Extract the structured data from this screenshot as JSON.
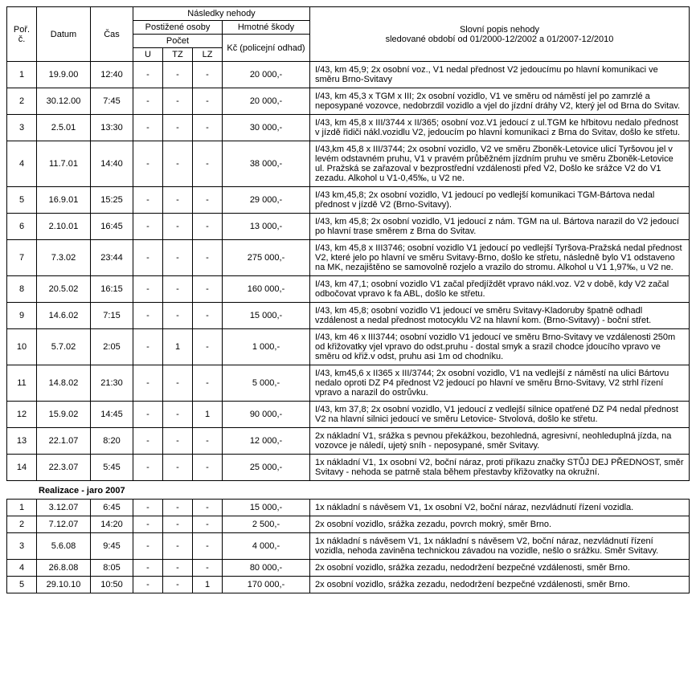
{
  "header": {
    "por": "Poř. č.",
    "datum": "Datum",
    "cas": "Čas",
    "nasledky": "Následky nehody",
    "postizene": "Postižené osoby",
    "hmotne": "Hmotné škody",
    "pocet": "Počet",
    "kc": "Kč (policejní odhad)",
    "u": "U",
    "tz": "TZ",
    "lz": "LZ",
    "popis_title": "Slovní popis nehody",
    "popis_sub": "sledované období od 01/2000-12/2002 a 01/2007-12/2010"
  },
  "rows1": [
    {
      "por": "1",
      "datum": "19.9.00",
      "cas": "12:40",
      "u": "-",
      "tz": "-",
      "lz": "-",
      "hmot": "20 000,-",
      "popis": "I/43, km 45,9; 2x osobní voz., V1 nedal přednost V2 jedoucímu po hlavní komunikaci ve směru Brno-Svitavy"
    },
    {
      "por": "2",
      "datum": "30.12.00",
      "cas": "7:45",
      "u": "-",
      "tz": "-",
      "lz": "-",
      "hmot": "20 000,-",
      "popis": "I/43, km 45,3 x TGM x III; 2x osobní vozidlo, V1 ve směru od náměstí jel po zamrzlé a neposypané vozovce, nedobrzdil vozidlo a vjel do jízdní dráhy V2, který jel od Brna do Svitav."
    },
    {
      "por": "3",
      "datum": "2.5.01",
      "cas": "13:30",
      "u": "-",
      "tz": "-",
      "lz": "-",
      "hmot": "30 000,-",
      "popis": "I/43, km 45,8 x III/3744 x II/365; osobní voz.V1 jedoucí z ul.TGM ke hřbitovu nedalo přednost v jízdě řidiči nákl.vozidlu V2, jedoucím po hlavní komunikaci z Brna do Svitav, došlo ke střetu."
    },
    {
      "por": "4",
      "datum": "11.7.01",
      "cas": "14:40",
      "u": "-",
      "tz": "-",
      "lz": "-",
      "hmot": "38 000,-",
      "popis": "I/43,km 45,8 x III/3744; 2x osobní vozidlo, V2 ve směru Zboněk-Letovice ulicí Tyršovou jel v levém odstavném pruhu, V1 v pravém průběžném jízdním pruhu ve směru Zboněk-Letovice ul. Pražská se zařazoval v bezprostřední vzdálenosti před V2, Došlo ke srážce V2 do V1 zezadu. Alkohol u V1-0,45‰, u V2 ne."
    },
    {
      "por": "5",
      "datum": "16.9.01",
      "cas": "15:25",
      "u": "-",
      "tz": "-",
      "lz": "-",
      "hmot": "29 000,-",
      "popis": "I/43 km,45,8; 2x osobní vozidlo, V1 jedoucí po vedlejší komunikaci TGM-Bártova nedal přednost v jízdě V2 (Brno-Svitavy)."
    },
    {
      "por": "6",
      "datum": "2.10.01",
      "cas": "16:45",
      "u": "-",
      "tz": "-",
      "lz": "-",
      "hmot": "13 000,-",
      "popis": "I/43, km 45,8; 2x osobní vozidlo, V1 jedoucí z nám. TGM na ul. Bártova narazil do V2 jedoucí po hlavní trase směrem z Brna do Svitav."
    },
    {
      "por": "7",
      "datum": "7.3.02",
      "cas": "23:44",
      "u": "-",
      "tz": "-",
      "lz": "-",
      "hmot": "275 000,-",
      "popis": "I/43, km 45,8 x III3746; osobní vozidlo V1 jedoucí po vedlejší Tyršova-Pražská nedal přednost V2, které jelo po hlavní ve směru Svitavy-Brno, došlo ke střetu, následně bylo V1 odstaveno na MK, nezajištěno se samovolně rozjelo a vrazilo do stromu. Alkohol u V1 1,97‰, u V2 ne."
    },
    {
      "por": "8",
      "datum": "20.5.02",
      "cas": "16:15",
      "u": "-",
      "tz": "-",
      "lz": "-",
      "hmot": "160 000,-",
      "popis": "I/43, km 47,1; osobní vozidlo V1 začal předjíždět vpravo nákl.voz. V2 v době, kdy V2 začal odbočovat vpravo k fa ABL, došlo ke střetu."
    },
    {
      "por": "9",
      "datum": "14.6.02",
      "cas": "7:15",
      "u": "-",
      "tz": "-",
      "lz": "-",
      "hmot": "15 000,-",
      "popis": "I/43, km 45,8; osobní vozidlo V1 jedoucí ve směru Svitavy-Kladoruby špatně odhadl vzdálenost a nedal přednost motocyklu V2 na hlavní kom. (Brno-Svitavy) - boční střet."
    },
    {
      "por": "10",
      "datum": "5.7.02",
      "cas": "2:05",
      "u": "-",
      "tz": "1",
      "lz": "-",
      "hmot": "1 000,-",
      "popis": "I/43, km 46 x III3744; osobní vozidlo V1 jedoucí ve směru Brno-Svitavy ve vzdálenosti 250m od křižovatky vjel vpravo do odst.pruhu - dostal smyk a srazil chodce jdoucího vpravo ve směru od křiž.v odst, pruhu asi 1m od chodníku."
    },
    {
      "por": "11",
      "datum": "14.8.02",
      "cas": "21:30",
      "u": "-",
      "tz": "-",
      "lz": "-",
      "hmot": "5 000,-",
      "popis": "I/43, km45,6 x II365 x III/3744; 2x osobní vozidlo, V1 na vedlejší z náměstí na ulici Bártovu nedalo oproti DZ P4 přednost V2 jedoucí po hlavní ve směru Brno-Svitavy, V2 strhl řízení vpravo a narazil do ostrůvku."
    },
    {
      "por": "12",
      "datum": "15.9.02",
      "cas": "14:45",
      "u": "-",
      "tz": "-",
      "lz": "1",
      "hmot": "90 000,-",
      "popis": "I/43, km 37,8; 2x osobní vozidlo, V1 jedoucí z vedlejší silnice opatřené DZ P4 nedal přednost V2 na hlavní silnici jedoucí ve směru Letovice- Stvolová, došlo ke střetu."
    },
    {
      "por": "13",
      "datum": "22.1.07",
      "cas": "8:20",
      "u": "-",
      "tz": "-",
      "lz": "-",
      "hmot": "12 000,-",
      "popis": "2x nákladní V1, srážka s pevnou překážkou, bezohledná, agresivní, neohleduplná jízda, na vozovce je náledí, ujetý sníh - neposypané, směr Svitavy."
    },
    {
      "por": "14",
      "datum": "22.3.07",
      "cas": "5:45",
      "u": "-",
      "tz": "-",
      "lz": "-",
      "hmot": "25 000,-",
      "popis": "1x nákladní V1, 1x osobní V2, boční náraz, proti příkazu značky STŮJ DEJ PŘEDNOST, směr Svitavy - nehoda se patrně stala během přestavby křižovatky na okružní."
    }
  ],
  "section_label": "Realizace - jaro 2007",
  "rows2": [
    {
      "por": "1",
      "datum": "3.12.07",
      "cas": "6:45",
      "u": "-",
      "tz": "-",
      "lz": "-",
      "hmot": "15 000,-",
      "popis": "1x nákladní s návěsem V1, 1x osobní V2, boční náraz, nezvládnutí řízení vozidla."
    },
    {
      "por": "2",
      "datum": "7.12.07",
      "cas": "14:20",
      "u": "-",
      "tz": "-",
      "lz": "-",
      "hmot": "2 500,-",
      "popis": "2x osobní vozidlo, srážka zezadu, povrch mokrý, směr Brno."
    },
    {
      "por": "3",
      "datum": "5.6.08",
      "cas": "9:45",
      "u": "-",
      "tz": "-",
      "lz": "-",
      "hmot": "4 000,-",
      "popis": "1x nákladní s návěsem V1, 1x nákladní s návěsem V2, boční náraz, nezvládnutí řízení vozidla, nehoda zaviněna technickou závadou na vozidle, nešlo o srážku. Směr Svitavy."
    },
    {
      "por": "4",
      "datum": "26.8.08",
      "cas": "8:05",
      "u": "-",
      "tz": "-",
      "lz": "-",
      "hmot": "80 000,-",
      "popis": "2x osobní vozidlo, srážka zezadu, nedodržení bezpečné vzdálenosti, směr Brno."
    },
    {
      "por": "5",
      "datum": "29.10.10",
      "cas": "10:50",
      "u": "-",
      "tz": "-",
      "lz": "1",
      "hmot": "170 000,-",
      "popis": "2x osobní vozidlo, srážka zezadu, nedodržení bezpečné vzdálenosti, směr Brno."
    }
  ]
}
